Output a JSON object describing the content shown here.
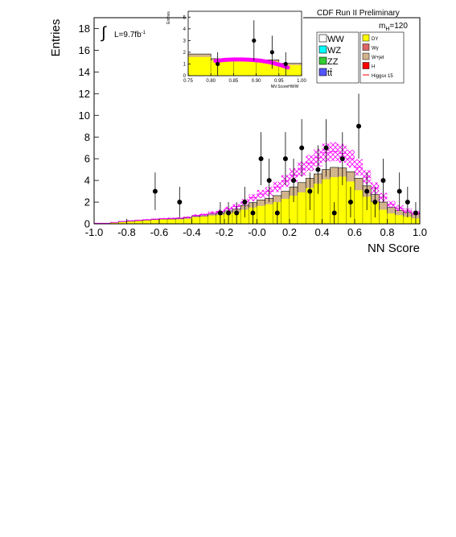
{
  "title": "CDF Run II Preliminary",
  "mass_label": "m",
  "mass_subscript": "H",
  "mass_value": "=120",
  "lumi": {
    "symbol": "∫",
    "text": "L=9.7fb",
    "superscript": "-1"
  },
  "legend": {
    "left": [
      {
        "label": "WW",
        "color": "#ffffff"
      },
      {
        "label": "WZ",
        "color": "#00ffff"
      },
      {
        "label": "ZZ",
        "color": "#33cc33"
      },
      {
        "label": "tt̄",
        "color": "#5555ff"
      }
    ],
    "right": [
      {
        "label": "DY",
        "color": "#ffff00"
      },
      {
        "label": "Wγ",
        "color": "#dd6666"
      },
      {
        "label": "W+jet",
        "color": "#d2b48c"
      },
      {
        "label": "H",
        "color": "#ff0000"
      },
      {
        "label": "Higgsx 15",
        "color": "#ff0000"
      }
    ]
  },
  "chart_data": [
    {
      "type": "bar",
      "xlabel": "NN Score",
      "ylabel": "Entries",
      "xlim": [
        -1.0,
        1.0
      ],
      "ylim": [
        0,
        19
      ],
      "xticks": [
        "-1.0",
        "-0.8",
        "-0.6",
        "-0.4",
        "-0.2",
        "-0.0",
        "0.2",
        "0.4",
        "0.6",
        "0.8",
        "1.0"
      ],
      "yticks": [
        "0",
        "2",
        "4",
        "6",
        "8",
        "10",
        "12",
        "14",
        "16",
        "18"
      ],
      "bin_edges": [
        -1.0,
        -0.95,
        -0.9,
        -0.85,
        -0.8,
        -0.75,
        -0.7,
        -0.65,
        -0.6,
        -0.55,
        -0.5,
        -0.45,
        -0.4,
        -0.35,
        -0.3,
        -0.25,
        -0.2,
        -0.15,
        -0.1,
        -0.05,
        0.0,
        0.05,
        0.1,
        0.15,
        0.2,
        0.25,
        0.3,
        0.35,
        0.4,
        0.45,
        0.5,
        0.55,
        0.6,
        0.65,
        0.7,
        0.75,
        0.8,
        0.85,
        0.9,
        0.95,
        1.0
      ],
      "dy": [
        0.05,
        0.05,
        0.1,
        0.15,
        0.2,
        0.25,
        0.3,
        0.35,
        0.4,
        0.4,
        0.4,
        0.45,
        0.6,
        0.65,
        0.75,
        0.8,
        0.95,
        1.05,
        1.3,
        1.5,
        1.65,
        1.8,
        2.0,
        2.3,
        2.6,
        2.9,
        3.3,
        3.7,
        4.1,
        4.3,
        4.35,
        3.9,
        3.1,
        2.5,
        2.0,
        1.3,
        0.95,
        0.8,
        0.65,
        0.5
      ],
      "total": [
        0.05,
        0.05,
        0.12,
        0.2,
        0.25,
        0.3,
        0.35,
        0.4,
        0.45,
        0.45,
        0.48,
        0.55,
        0.7,
        0.75,
        0.9,
        1.0,
        1.2,
        1.35,
        1.7,
        1.95,
        2.2,
        2.35,
        2.6,
        3.0,
        3.4,
        3.8,
        4.2,
        4.6,
        5.0,
        5.2,
        5.15,
        4.8,
        4.2,
        3.5,
        2.7,
        2.0,
        1.5,
        1.25,
        1.05,
        0.9
      ],
      "signal_total": [
        0.05,
        0.05,
        0.13,
        0.22,
        0.28,
        0.33,
        0.38,
        0.43,
        0.48,
        0.5,
        0.53,
        0.6,
        0.78,
        0.85,
        1.02,
        1.15,
        1.38,
        1.6,
        2.02,
        2.4,
        2.75,
        3.0,
        3.4,
        3.95,
        4.5,
        5.05,
        5.6,
        6.1,
        6.55,
        6.65,
        6.5,
        6.0,
        5.2,
        4.3,
        3.3,
        2.45,
        1.8,
        1.45,
        1.2,
        1.0
      ],
      "band": [
        0.0,
        0.0,
        0.02,
        0.03,
        0.04,
        0.05,
        0.05,
        0.06,
        0.06,
        0.07,
        0.07,
        0.08,
        0.1,
        0.12,
        0.14,
        0.16,
        0.2,
        0.22,
        0.28,
        0.33,
        0.38,
        0.42,
        0.48,
        0.55,
        0.62,
        0.68,
        0.74,
        0.8,
        0.85,
        0.87,
        0.86,
        0.82,
        0.75,
        0.65,
        0.52,
        0.4,
        0.3,
        0.26,
        0.22,
        0.2
      ],
      "data_points": [
        {
          "x": -0.625,
          "y": 3
        },
        {
          "x": -0.475,
          "y": 2
        },
        {
          "x": -0.225,
          "y": 1
        },
        {
          "x": -0.175,
          "y": 1
        },
        {
          "x": -0.125,
          "y": 1
        },
        {
          "x": -0.075,
          "y": 2
        },
        {
          "x": -0.025,
          "y": 1
        },
        {
          "x": 0.025,
          "y": 6
        },
        {
          "x": 0.075,
          "y": 4
        },
        {
          "x": 0.125,
          "y": 1
        },
        {
          "x": 0.175,
          "y": 6
        },
        {
          "x": 0.225,
          "y": 4
        },
        {
          "x": 0.275,
          "y": 7
        },
        {
          "x": 0.325,
          "y": 3
        },
        {
          "x": 0.375,
          "y": 5
        },
        {
          "x": 0.425,
          "y": 7
        },
        {
          "x": 0.475,
          "y": 1
        },
        {
          "x": 0.525,
          "y": 6
        },
        {
          "x": 0.575,
          "y": 2
        },
        {
          "x": 0.625,
          "y": 9
        },
        {
          "x": 0.675,
          "y": 3
        },
        {
          "x": 0.725,
          "y": 2
        },
        {
          "x": 0.775,
          "y": 4
        },
        {
          "x": 0.875,
          "y": 3
        },
        {
          "x": 0.925,
          "y": 2
        },
        {
          "x": 0.975,
          "y": 1
        }
      ]
    },
    {
      "type": "bar",
      "xlabel": "NN ScoreHWW",
      "ylabel": "Entries",
      "xlim": [
        0.75,
        1.0
      ],
      "ylim": [
        0,
        5.5
      ],
      "xticks": [
        "0.75",
        "0.80",
        "0.85",
        "0.90",
        "0.95",
        "1.00"
      ],
      "yticks": [
        "0",
        "1",
        "2",
        "3",
        "4",
        "5"
      ],
      "bin_edges": [
        0.75,
        0.8,
        0.85,
        0.9,
        0.95,
        1.0
      ],
      "dy": [
        1.6,
        1.3,
        1.25,
        1.2,
        0.9
      ],
      "total": [
        1.85,
        1.45,
        1.4,
        1.35,
        1.05
      ],
      "signal_curve": [
        {
          "x": 0.81,
          "y": 1.25
        },
        {
          "x": 0.83,
          "y": 1.35
        },
        {
          "x": 0.85,
          "y": 1.38
        },
        {
          "x": 0.87,
          "y": 1.38
        },
        {
          "x": 0.89,
          "y": 1.35
        },
        {
          "x": 0.91,
          "y": 1.28
        },
        {
          "x": 0.93,
          "y": 1.15
        },
        {
          "x": 0.95,
          "y": 0.95
        },
        {
          "x": 0.97,
          "y": 0.7
        }
      ],
      "data_points": [
        {
          "x": 0.815,
          "y": 1
        },
        {
          "x": 0.895,
          "y": 3
        },
        {
          "x": 0.935,
          "y": 2
        },
        {
          "x": 0.965,
          "y": 1
        }
      ]
    }
  ]
}
